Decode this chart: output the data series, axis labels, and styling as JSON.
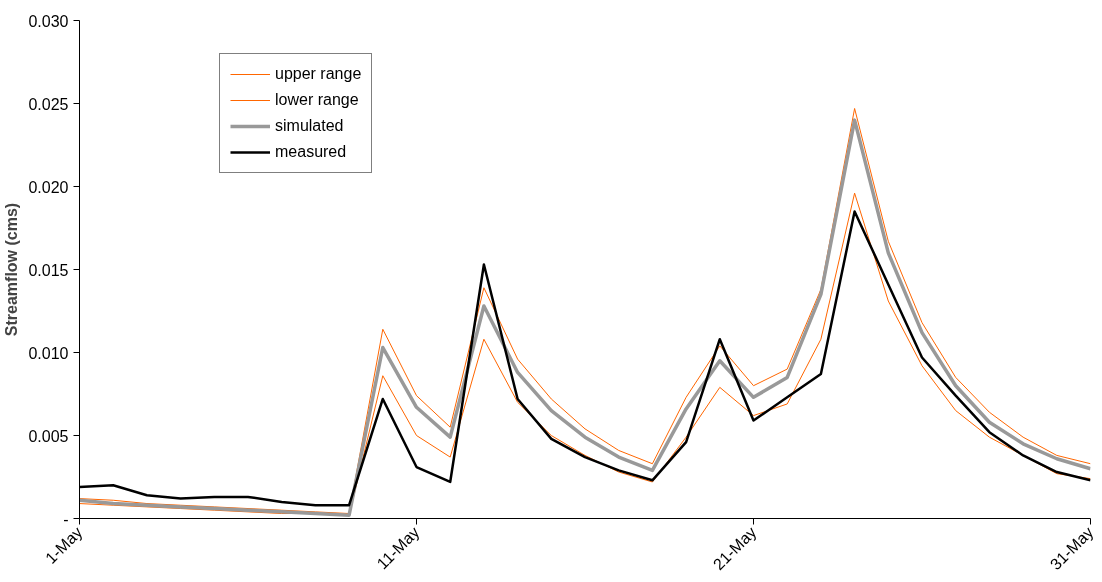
{
  "chart_data": {
    "type": "line",
    "ylabel": "Streamflow (cms)",
    "categories": [
      "1-May",
      null,
      null,
      null,
      null,
      null,
      null,
      null,
      null,
      null,
      "11-May",
      null,
      null,
      null,
      null,
      null,
      null,
      null,
      null,
      null,
      "21-May",
      null,
      null,
      null,
      null,
      null,
      null,
      null,
      null,
      null,
      "31-May"
    ],
    "ylim": [
      0,
      0.03
    ],
    "yticks": [
      {
        "value": 0,
        "label": "-"
      },
      0.005,
      {
        "value": 0.01,
        "label": "0.010"
      },
      0.015,
      {
        "value": 0.02,
        "label": "0.020"
      },
      0.025,
      {
        "value": 0.03,
        "label": "0.030"
      }
    ],
    "grid": false,
    "legend": "top left",
    "marker": "none",
    "line_style": "solid",
    "series": [
      {
        "name": "upper range",
        "color": "#ff6600",
        "values": [
          0.0012,
          0.0011,
          0.0009,
          0.0008,
          0.0007,
          0.0006,
          0.0005,
          0.0004,
          0.0003,
          0.0114,
          0.0074,
          0.0055,
          0.0139,
          0.0096,
          0.0072,
          0.0054,
          0.0041,
          0.0033,
          0.0073,
          0.0104,
          0.008,
          0.009,
          0.0138,
          0.0247,
          0.0167,
          0.0118,
          0.0085,
          0.0064,
          0.0049,
          0.0038,
          0.0033
        ]
      },
      {
        "name": "lower range",
        "color": "#ff6600",
        "values": [
          0.0009,
          0.0008,
          0.0007,
          0.0006,
          0.0005,
          0.0004,
          0.0003,
          0.0003,
          0.0002,
          0.0086,
          0.005,
          0.0037,
          0.0108,
          0.007,
          0.005,
          0.0038,
          0.0028,
          0.0022,
          0.0049,
          0.0079,
          0.0062,
          0.0069,
          0.0108,
          0.0196,
          0.0131,
          0.0092,
          0.0065,
          0.0049,
          0.0038,
          0.0027,
          0.0024
        ]
      },
      {
        "name": "simulated",
        "color": "#999999",
        "values": [
          0.0011,
          0.0009,
          0.0008,
          0.0007,
          0.0006,
          0.0005,
          0.0004,
          0.0003,
          0.0002,
          0.0103,
          0.0067,
          0.0049,
          0.0128,
          0.0088,
          0.0065,
          0.0049,
          0.0037,
          0.0029,
          0.0066,
          0.0095,
          0.0073,
          0.0085,
          0.0135,
          0.024,
          0.016,
          0.0112,
          0.008,
          0.0058,
          0.0045,
          0.0036,
          0.003
        ]
      },
      {
        "name": "measured",
        "color": "#000000",
        "values": [
          0.0019,
          0.002,
          0.0014,
          0.0012,
          0.0013,
          0.0013,
          0.001,
          0.0008,
          0.0008,
          0.0072,
          0.0031,
          0.0022,
          0.0153,
          0.0072,
          0.0048,
          0.0037,
          0.0029,
          0.0023,
          0.0046,
          0.0108,
          0.0059,
          0.0073,
          0.0087,
          0.0185,
          0.0141,
          0.0097,
          0.0074,
          0.0052,
          0.0038,
          0.0028,
          0.0023
        ]
      }
    ]
  }
}
